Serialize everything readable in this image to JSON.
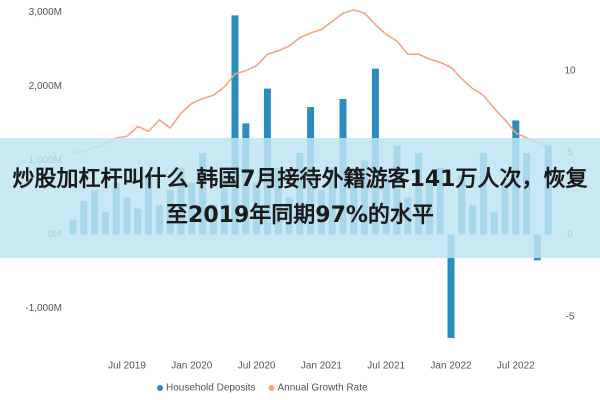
{
  "chart_data": {
    "type": "bar-line",
    "categories": [
      null,
      null,
      null,
      null,
      null,
      "Jul 2019",
      null,
      null,
      null,
      null,
      null,
      "Jan 2020",
      null,
      null,
      null,
      null,
      null,
      "Jul 2020",
      null,
      null,
      null,
      null,
      null,
      "Jan 2021",
      null,
      null,
      null,
      null,
      null,
      "Jul 2021",
      null,
      null,
      null,
      null,
      null,
      "Jan 2022",
      null,
      null,
      null,
      null,
      null,
      "Jul 2022",
      null,
      null,
      null
    ],
    "series": [
      {
        "name": "Household Deposits",
        "color": "#2b8cbe",
        "type": "bar",
        "values": [
          200,
          450,
          600,
          300,
          700,
          500,
          350,
          800,
          400,
          600,
          900,
          700,
          1100,
          400,
          800,
          2960,
          1500,
          700,
          1970,
          900,
          500,
          1100,
          1720,
          600,
          900,
          1830,
          700,
          1000,
          2240,
          800,
          1200,
          500,
          1100,
          700,
          900,
          -1400,
          800,
          400,
          1100,
          300,
          700,
          1540,
          1100,
          -350,
          1200
        ]
      },
      {
        "name": "Annual Growth Rate",
        "color": "#f4a582",
        "type": "line",
        "axis": "y2",
        "values": [
          5.0,
          5.1,
          5.3,
          5.5,
          5.9,
          6.0,
          6.6,
          6.3,
          7.0,
          6.5,
          7.4,
          8.0,
          8.3,
          8.5,
          9.0,
          9.8,
          10.0,
          10.3,
          11.0,
          11.2,
          11.5,
          12.0,
          12.3,
          12.5,
          13.0,
          13.5,
          13.7,
          13.5,
          12.8,
          12.2,
          11.8,
          11.0,
          11.0,
          10.7,
          10.5,
          10.2,
          9.5,
          8.9,
          8.5,
          7.7,
          7.0,
          6.2,
          5.9,
          5.6,
          5.4
        ]
      }
    ],
    "ylim": [
      -1400,
      3100
    ],
    "yticks": [
      {
        "value": 3000,
        "label": "3,000M"
      },
      {
        "value": 2000,
        "label": "2,000M"
      },
      {
        "value": 1000,
        "label": "1,000M"
      },
      {
        "value": 0,
        "label": "0M"
      },
      {
        "value": -1000,
        "label": "-1,000M"
      }
    ],
    "y2lim": [
      -6.3,
      14
    ],
    "y2ticks": [
      10,
      5,
      0,
      -5
    ],
    "grid": false,
    "legend": "bottom"
  },
  "banner_text": "炒股加杠杆叫什么 韩国7月接待外籍游客141万人次，恢复至2019年同期97%的水平"
}
